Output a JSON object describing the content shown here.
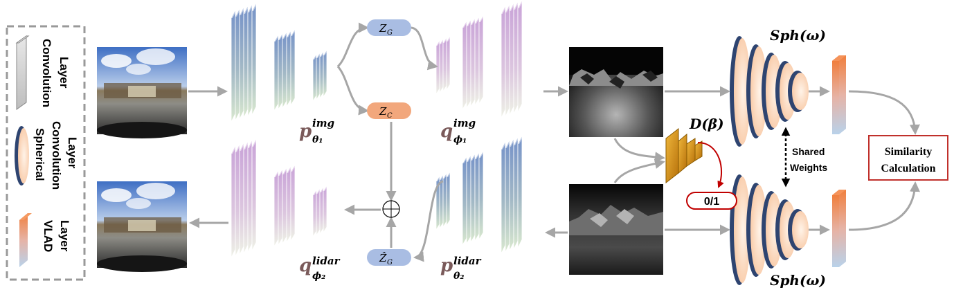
{
  "legend": {
    "conv_label_line1": "Convolution",
    "conv_label_line2": "Layer",
    "sph_label_line1": "Spherical",
    "sph_label_line2": "Convolution",
    "sph_label_line3": "Layer",
    "vlad_label_line1": "VLAD",
    "vlad_label_line2": "Layer"
  },
  "nodes": {
    "zg_main": "Z",
    "zg_sub": "G",
    "zc_main": "Z",
    "zc_sub": "C",
    "zg_hat_main": "Ẑ",
    "zg_hat_sub": "G"
  },
  "labels": {
    "p_img_main": "p",
    "p_img_sup": "img",
    "p_img_sub": "θ₁",
    "q_img_main": "q",
    "q_img_sup": "img",
    "q_img_sub": "ϕ₁",
    "q_lidar_main": "q",
    "q_lidar_sup": "lidar",
    "q_lidar_sub": "ϕ₂",
    "p_lidar_main": "p",
    "p_lidar_sup": "lidar",
    "p_lidar_sub": "θ₂",
    "discriminator": "D(β)",
    "binary_output": "0/1",
    "sph_top": "Sph(ω)",
    "sph_bottom": "Sph(ω)",
    "shared_line1": "Shared",
    "shared_line2": "Weights",
    "similarity_line1": "Similarity",
    "similarity_line2": "Calculation"
  },
  "colors": {
    "arrow": "#a6a6a6",
    "zg_fill": "#a9bde3",
    "zc_fill": "#f2a77c",
    "discriminator": "#d8900f",
    "similarity_border": "#c0302b",
    "binary_border": "#c00000",
    "sph_rim": "#2e4470",
    "sph_fill": "#fad5b8"
  }
}
